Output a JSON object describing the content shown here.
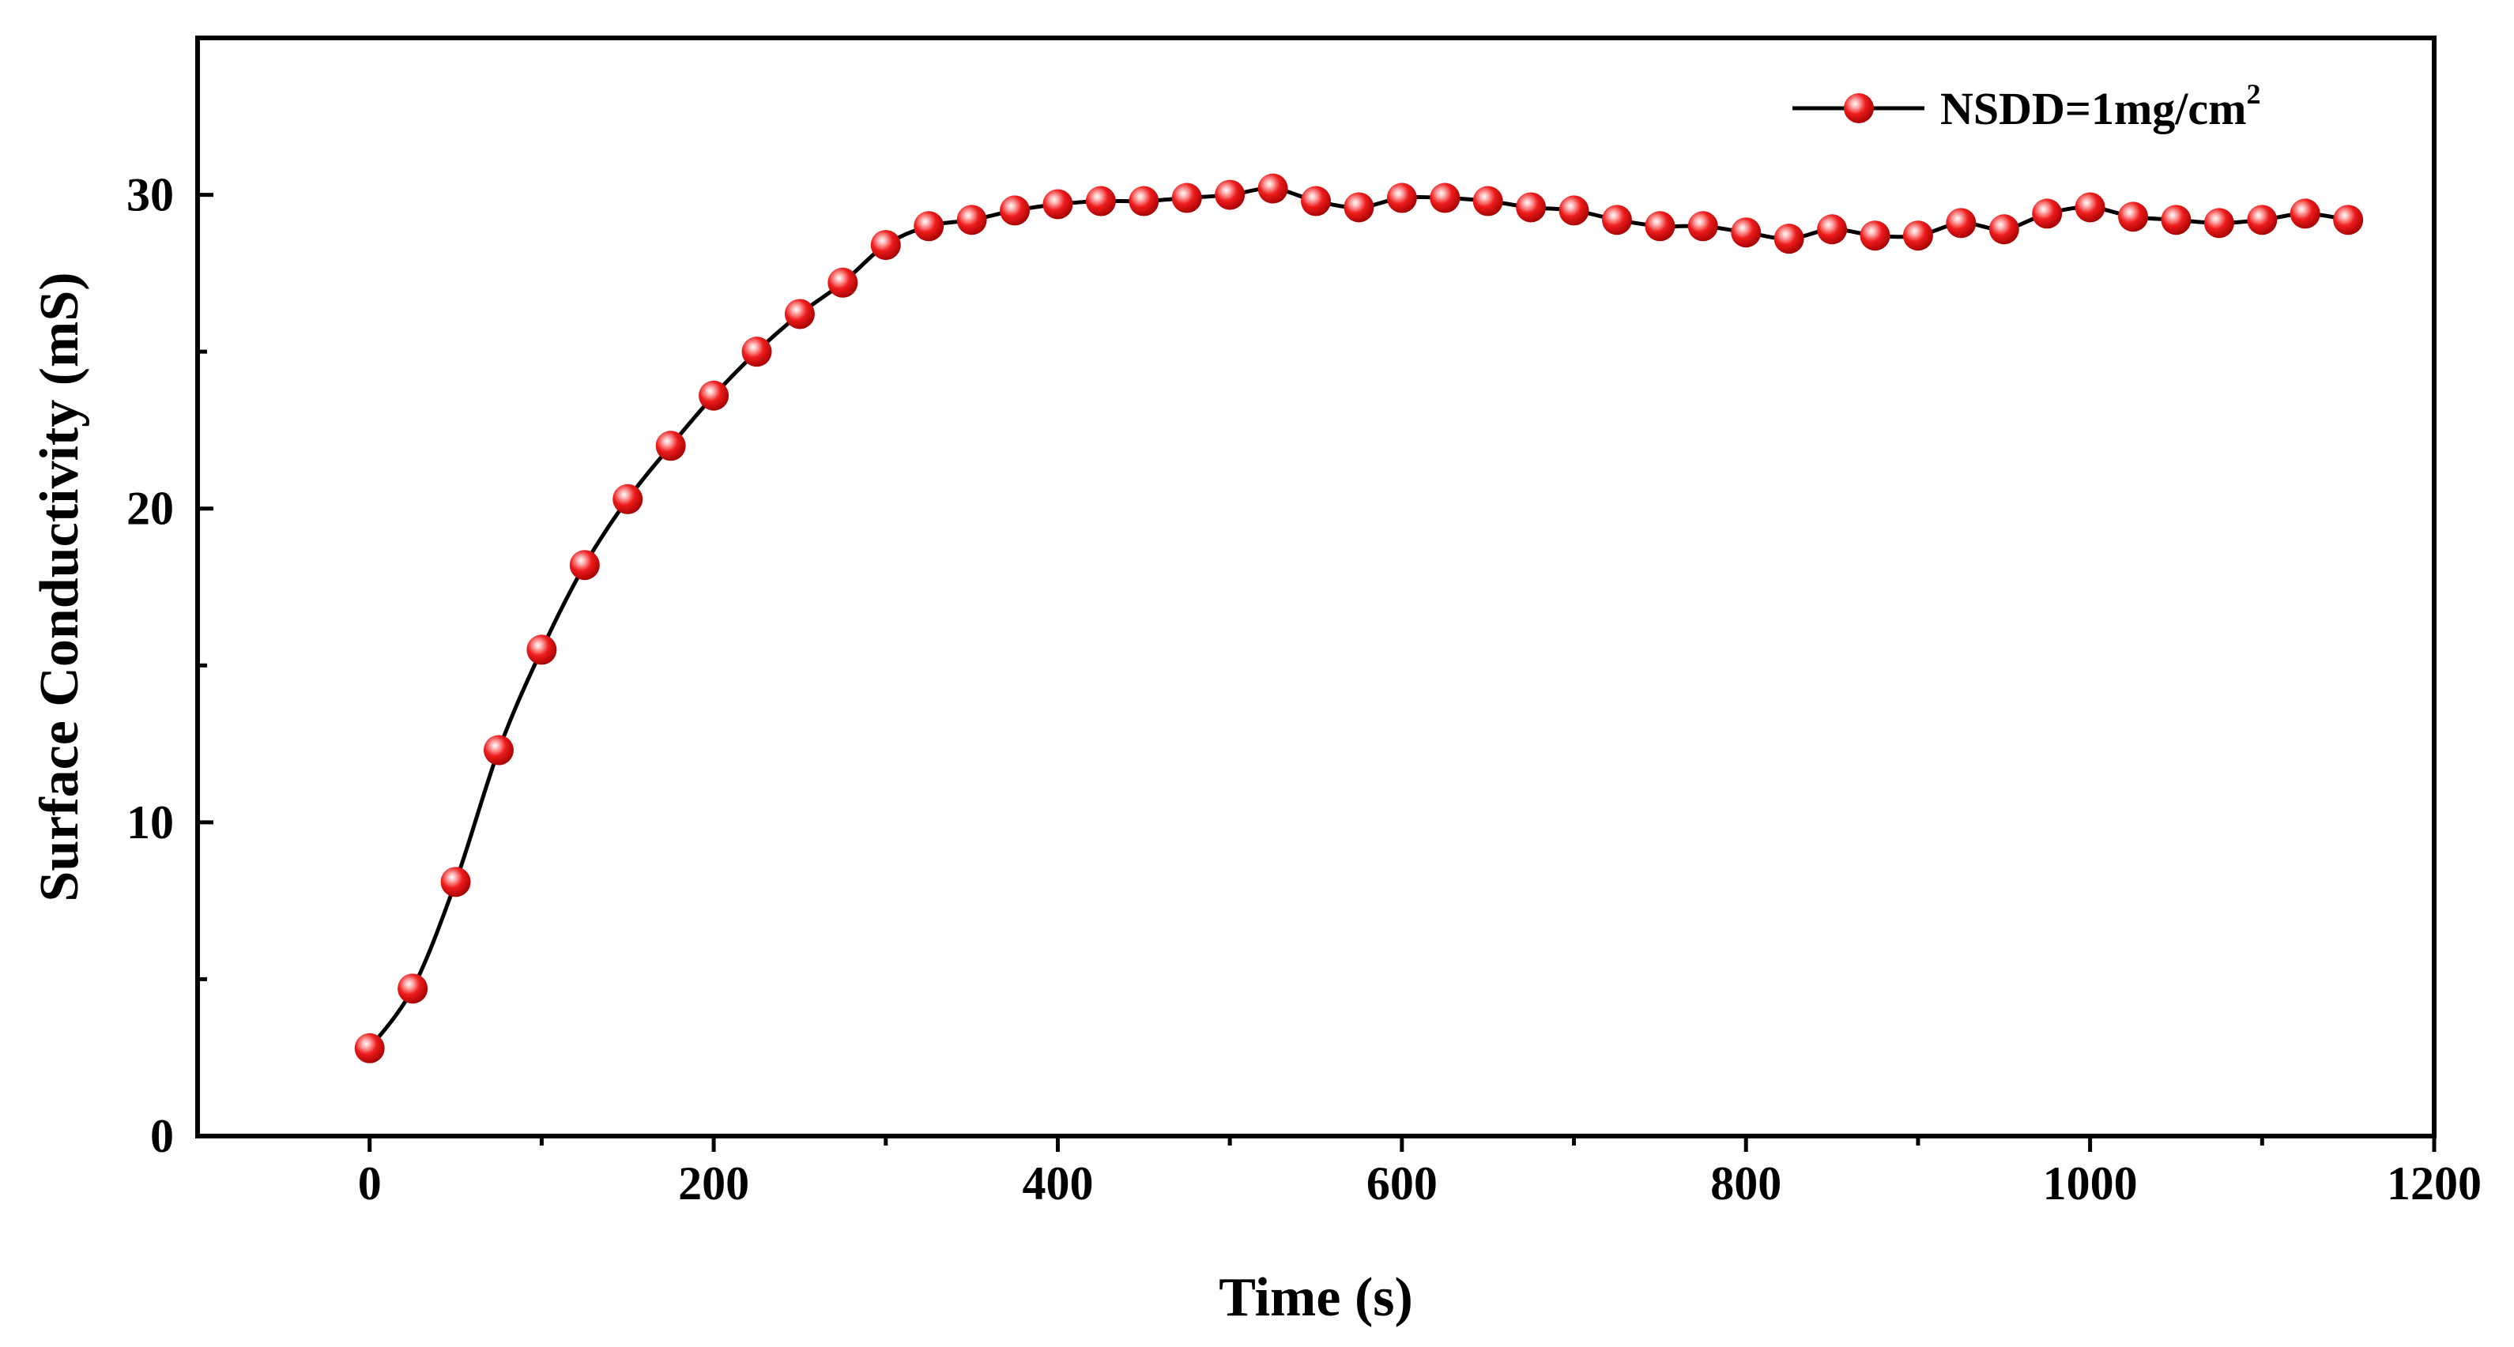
{
  "chart_data": {
    "type": "line",
    "title": "",
    "xlabel": "Time (s)",
    "ylabel": "Surface Conductivity (mS)",
    "xlim": [
      -100,
      1200
    ],
    "ylim": [
      0,
      35
    ],
    "xticks": [
      0,
      200,
      400,
      600,
      800,
      1000,
      1200
    ],
    "yticks": [
      0,
      10,
      20,
      30
    ],
    "xtick_labels": [
      "0",
      "200",
      "400",
      "600",
      "800",
      "1000",
      "1200"
    ],
    "ytick_labels": [
      "0",
      "10",
      "20",
      "30"
    ],
    "grid": false,
    "legend_position": "top-right",
    "series": [
      {
        "name": "NSDD=1mg/cm2",
        "legend_main": "NSDD=1mg/cm",
        "legend_sup": "2",
        "line_color": "#000000",
        "marker_color": "#ee1c1c",
        "x": [
          0,
          25,
          50,
          75,
          100,
          125,
          150,
          175,
          200,
          225,
          250,
          275,
          300,
          325,
          350,
          375,
          400,
          425,
          450,
          475,
          500,
          525,
          550,
          575,
          600,
          625,
          650,
          675,
          700,
          725,
          750,
          775,
          800,
          825,
          850,
          875,
          900,
          925,
          950,
          975,
          1000,
          1025,
          1050,
          1075,
          1100,
          1125,
          1150
        ],
        "values": [
          2.8,
          4.7,
          8.1,
          12.3,
          15.5,
          18.2,
          20.3,
          22.0,
          23.6,
          25.0,
          26.2,
          27.2,
          28.4,
          29.0,
          29.2,
          29.5,
          29.7,
          29.8,
          29.8,
          29.9,
          30.0,
          30.2,
          29.8,
          29.6,
          29.9,
          29.9,
          29.8,
          29.6,
          29.5,
          29.2,
          29.0,
          29.0,
          28.8,
          28.6,
          28.9,
          28.7,
          28.7,
          29.1,
          28.9,
          29.4,
          29.6,
          29.3,
          29.2,
          29.1,
          29.2,
          29.4,
          29.2
        ]
      }
    ]
  }
}
